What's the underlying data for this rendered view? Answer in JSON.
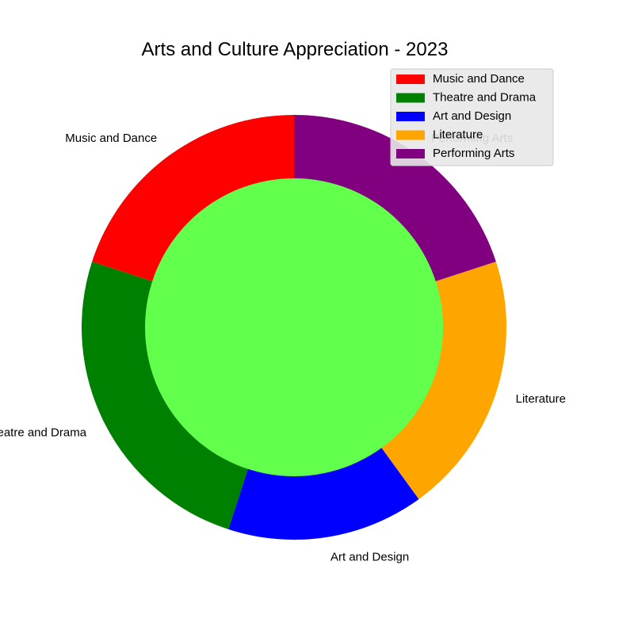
{
  "chart_data": {
    "type": "pie",
    "title": "Arts and Culture Appreciation - 2023",
    "categories": [
      "Music and Dance",
      "Theatre and Drama",
      "Art and Design",
      "Literature",
      "Performing Arts"
    ],
    "values": [
      20,
      25,
      15,
      20,
      20
    ],
    "colors": [
      "#ff0000",
      "#008000",
      "#0000ff",
      "#ffa500",
      "#800080"
    ],
    "center_color": "#63ff4d",
    "donut": true,
    "start_angle_degrees": 90,
    "direction": "counterclockwise",
    "legend": {
      "placement": "top-right",
      "entries": [
        "Music and Dance",
        "Theatre and Drama",
        "Art and Design",
        "Literature",
        "Performing Arts"
      ]
    }
  }
}
